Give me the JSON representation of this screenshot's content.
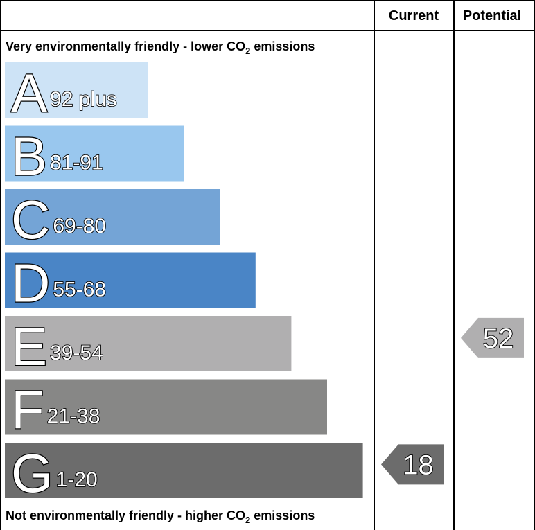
{
  "chart_data": {
    "type": "bar",
    "headers": {
      "current": "Current",
      "potential": "Potential"
    },
    "top_note": {
      "prefix": "Very environmentally friendly - lower CO",
      "sub": "2",
      "suffix": " emissions"
    },
    "bottom_note": {
      "prefix": "Not environmentally friendly - higher CO",
      "sub": "2",
      "suffix": " emissions"
    },
    "bands": [
      {
        "letter": "A",
        "range": "92 plus",
        "min": 92,
        "max": 100,
        "color": "#cde3f6"
      },
      {
        "letter": "B",
        "range": "81-91",
        "min": 81,
        "max": 91,
        "color": "#99c7ee"
      },
      {
        "letter": "C",
        "range": "69-80",
        "min": 69,
        "max": 80,
        "color": "#74a4d6"
      },
      {
        "letter": "D",
        "range": "55-68",
        "min": 55,
        "max": 68,
        "color": "#4a85c6"
      },
      {
        "letter": "E",
        "range": "39-54",
        "min": 39,
        "max": 54,
        "color": "#b0afb0"
      },
      {
        "letter": "F",
        "range": "21-38",
        "min": 21,
        "max": 38,
        "color": "#878786"
      },
      {
        "letter": "G",
        "range": "1-20",
        "min": 1,
        "max": 20,
        "color": "#6c6c6c"
      }
    ],
    "current": {
      "value": 18,
      "label": "18",
      "band": "G",
      "color": "#6c6c6c"
    },
    "potential": {
      "value": 52,
      "label": "52",
      "band": "E",
      "color": "#b0afb0"
    }
  }
}
